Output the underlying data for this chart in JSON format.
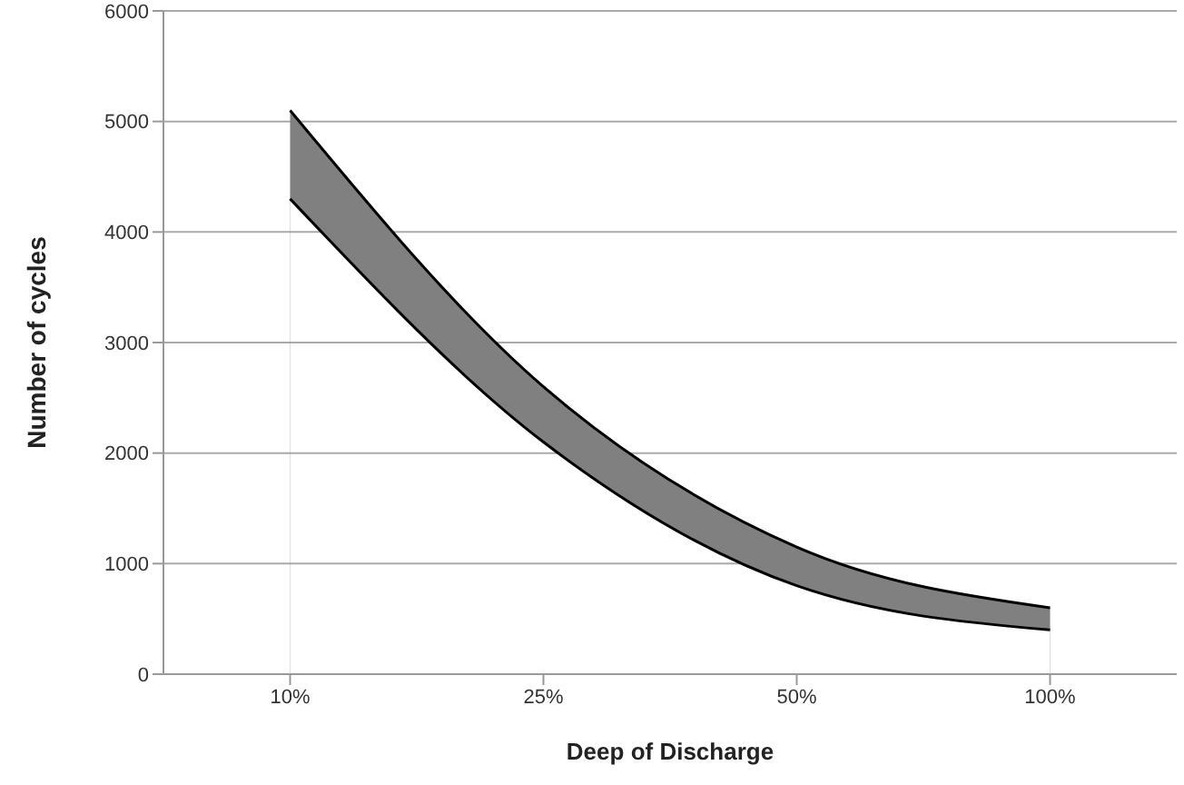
{
  "chart_data": {
    "type": "area",
    "xlabel": "Deep of Discharge",
    "ylabel": "Number of cycles",
    "categories": [
      "10%",
      "25%",
      "50%",
      "100%"
    ],
    "series": [
      {
        "color": "#808080",
        "values": [
          5100,
          2600,
          1150,
          600
        ]
      },
      {
        "color": "#ffffff",
        "values": [
          4300,
          2100,
          800,
          400
        ]
      }
    ],
    "ylim": [
      0,
      6000
    ],
    "yticks": [
      0,
      1000,
      2000,
      3000,
      4000,
      5000,
      6000
    ],
    "grid": "y"
  }
}
